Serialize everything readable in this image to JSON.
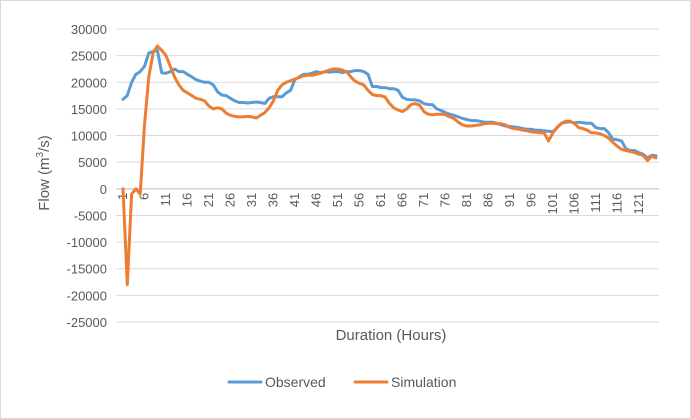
{
  "chart_data": {
    "type": "line",
    "title": "",
    "xlabel": "Duration (Hours)",
    "ylabel_main": "Flow (m",
    "ylabel_sup": "3",
    "ylabel_tail": "/s)",
    "ylim": [
      -25000,
      30000
    ],
    "yticks": [
      -25000,
      -20000,
      -15000,
      -10000,
      -5000,
      0,
      5000,
      10000,
      15000,
      20000,
      25000,
      30000
    ],
    "xlim": [
      1,
      125
    ],
    "xticks": [
      1,
      6,
      11,
      16,
      21,
      26,
      31,
      36,
      41,
      46,
      51,
      56,
      61,
      66,
      71,
      76,
      81,
      86,
      91,
      96,
      101,
      106,
      111,
      116,
      121
    ],
    "grid": true,
    "legend_position": "bottom",
    "series": [
      {
        "name": "Observed",
        "color": "#5b9bd5",
        "points": [
          [
            1,
            16800
          ],
          [
            2,
            17500
          ],
          [
            3,
            20000
          ],
          [
            4,
            21500
          ],
          [
            5,
            22000
          ],
          [
            6,
            23000
          ],
          [
            7,
            25500
          ],
          [
            8,
            25800
          ],
          [
            9,
            26000
          ],
          [
            10,
            21800
          ],
          [
            11,
            21700
          ],
          [
            12,
            22000
          ],
          [
            13,
            22500
          ],
          [
            14,
            22000
          ],
          [
            15,
            22000
          ],
          [
            16,
            21500
          ],
          [
            17,
            21000
          ],
          [
            18,
            20500
          ],
          [
            19,
            20200
          ],
          [
            20,
            20000
          ],
          [
            21,
            20000
          ],
          [
            22,
            19500
          ],
          [
            23,
            18200
          ],
          [
            24,
            17600
          ],
          [
            25,
            17500
          ],
          [
            26,
            17000
          ],
          [
            27,
            16500
          ],
          [
            28,
            16200
          ],
          [
            29,
            16200
          ],
          [
            30,
            16100
          ],
          [
            31,
            16200
          ],
          [
            32,
            16300
          ],
          [
            33,
            16200
          ],
          [
            34,
            16000
          ],
          [
            35,
            17000
          ],
          [
            36,
            17300
          ],
          [
            37,
            17300
          ],
          [
            38,
            17300
          ],
          [
            39,
            18000
          ],
          [
            40,
            18500
          ],
          [
            41,
            20500
          ],
          [
            42,
            21000
          ],
          [
            43,
            21500
          ],
          [
            44,
            21500
          ],
          [
            45,
            21700
          ],
          [
            46,
            22000
          ],
          [
            47,
            21800
          ],
          [
            48,
            22000
          ],
          [
            49,
            21900
          ],
          [
            50,
            22000
          ],
          [
            51,
            22000
          ],
          [
            52,
            21800
          ],
          [
            53,
            22000
          ],
          [
            54,
            22000
          ],
          [
            55,
            22200
          ],
          [
            56,
            22200
          ],
          [
            57,
            22000
          ],
          [
            58,
            21500
          ],
          [
            59,
            19200
          ],
          [
            60,
            19200
          ],
          [
            61,
            19000
          ],
          [
            62,
            19000
          ],
          [
            63,
            18800
          ],
          [
            64,
            18800
          ],
          [
            65,
            18500
          ],
          [
            66,
            17200
          ],
          [
            67,
            16800
          ],
          [
            68,
            16700
          ],
          [
            69,
            16700
          ],
          [
            70,
            16500
          ],
          [
            71,
            16000
          ],
          [
            72,
            15800
          ],
          [
            73,
            15800
          ],
          [
            74,
            15000
          ],
          [
            75,
            14700
          ],
          [
            76,
            14300
          ],
          [
            77,
            14000
          ],
          [
            78,
            13800
          ],
          [
            79,
            13500
          ],
          [
            80,
            13200
          ],
          [
            81,
            13000
          ],
          [
            82,
            12800
          ],
          [
            83,
            12800
          ],
          [
            84,
            12700
          ],
          [
            85,
            12500
          ],
          [
            86,
            12500
          ],
          [
            87,
            12500
          ],
          [
            88,
            12300
          ],
          [
            89,
            12000
          ],
          [
            90,
            11800
          ],
          [
            91,
            11700
          ],
          [
            92,
            11600
          ],
          [
            93,
            11500
          ],
          [
            94,
            11300
          ],
          [
            95,
            11200
          ],
          [
            96,
            11200
          ],
          [
            97,
            11000
          ],
          [
            98,
            11000
          ],
          [
            99,
            10900
          ],
          [
            100,
            10800
          ],
          [
            101,
            10700
          ],
          [
            102,
            11500
          ],
          [
            103,
            12300
          ],
          [
            104,
            12500
          ],
          [
            105,
            12600
          ],
          [
            106,
            12400
          ],
          [
            107,
            12500
          ],
          [
            108,
            12400
          ],
          [
            109,
            12300
          ],
          [
            110,
            12300
          ],
          [
            111,
            11500
          ],
          [
            112,
            11300
          ],
          [
            113,
            11300
          ],
          [
            114,
            10500
          ],
          [
            115,
            9300
          ],
          [
            116,
            9200
          ],
          [
            117,
            9000
          ],
          [
            118,
            7500
          ],
          [
            119,
            7200
          ],
          [
            120,
            7200
          ],
          [
            121,
            6800
          ],
          [
            122,
            6500
          ],
          [
            123,
            5800
          ],
          [
            124,
            6300
          ],
          [
            125,
            6200
          ]
        ]
      },
      {
        "name": "Simulation",
        "color": "#ed7d31",
        "points": [
          [
            1,
            0
          ],
          [
            2,
            -18000
          ],
          [
            3,
            -1000
          ],
          [
            4,
            0
          ],
          [
            5,
            -1000
          ],
          [
            6,
            12000
          ],
          [
            7,
            21000
          ],
          [
            8,
            25500
          ],
          [
            9,
            26800
          ],
          [
            10,
            26000
          ],
          [
            11,
            25000
          ],
          [
            12,
            23000
          ],
          [
            13,
            21000
          ],
          [
            14,
            19500
          ],
          [
            15,
            18500
          ],
          [
            16,
            18000
          ],
          [
            17,
            17500
          ],
          [
            18,
            17000
          ],
          [
            19,
            16800
          ],
          [
            20,
            16500
          ],
          [
            21,
            15500
          ],
          [
            22,
            15000
          ],
          [
            23,
            15200
          ],
          [
            24,
            15000
          ],
          [
            25,
            14200
          ],
          [
            26,
            13800
          ],
          [
            27,
            13600
          ],
          [
            28,
            13500
          ],
          [
            29,
            13500
          ],
          [
            30,
            13600
          ],
          [
            31,
            13500
          ],
          [
            32,
            13300
          ],
          [
            33,
            13800
          ],
          [
            34,
            14300
          ],
          [
            35,
            15200
          ],
          [
            36,
            16500
          ],
          [
            37,
            18500
          ],
          [
            38,
            19500
          ],
          [
            39,
            20000
          ],
          [
            40,
            20300
          ],
          [
            41,
            20600
          ],
          [
            42,
            20900
          ],
          [
            43,
            21200
          ],
          [
            44,
            21300
          ],
          [
            45,
            21300
          ],
          [
            46,
            21500
          ],
          [
            47,
            21700
          ],
          [
            48,
            22000
          ],
          [
            49,
            22300
          ],
          [
            50,
            22500
          ],
          [
            51,
            22500
          ],
          [
            52,
            22300
          ],
          [
            53,
            22000
          ],
          [
            54,
            21000
          ],
          [
            55,
            20200
          ],
          [
            56,
            19800
          ],
          [
            57,
            19500
          ],
          [
            58,
            18500
          ],
          [
            59,
            17700
          ],
          [
            60,
            17500
          ],
          [
            61,
            17500
          ],
          [
            62,
            17200
          ],
          [
            63,
            16000
          ],
          [
            64,
            15200
          ],
          [
            65,
            14800
          ],
          [
            66,
            14500
          ],
          [
            67,
            15000
          ],
          [
            68,
            15800
          ],
          [
            69,
            16000
          ],
          [
            70,
            15700
          ],
          [
            71,
            14500
          ],
          [
            72,
            14000
          ],
          [
            73,
            13900
          ],
          [
            74,
            14000
          ],
          [
            75,
            14000
          ],
          [
            76,
            13900
          ],
          [
            77,
            13500
          ],
          [
            78,
            13200
          ],
          [
            79,
            12500
          ],
          [
            80,
            12000
          ],
          [
            81,
            11800
          ],
          [
            82,
            11800
          ],
          [
            83,
            11900
          ],
          [
            84,
            12000
          ],
          [
            85,
            12200
          ],
          [
            86,
            12300
          ],
          [
            87,
            12300
          ],
          [
            88,
            12200
          ],
          [
            89,
            12200
          ],
          [
            90,
            12000
          ],
          [
            91,
            11500
          ],
          [
            92,
            11300
          ],
          [
            93,
            11200
          ],
          [
            94,
            11000
          ],
          [
            95,
            10900
          ],
          [
            96,
            10700
          ],
          [
            97,
            10600
          ],
          [
            98,
            10500
          ],
          [
            99,
            10500
          ],
          [
            100,
            9000
          ],
          [
            101,
            10500
          ],
          [
            102,
            11500
          ],
          [
            103,
            12300
          ],
          [
            104,
            12700
          ],
          [
            105,
            12700
          ],
          [
            106,
            12300
          ],
          [
            107,
            11500
          ],
          [
            108,
            11300
          ],
          [
            109,
            11000
          ],
          [
            110,
            10500
          ],
          [
            111,
            10500
          ],
          [
            112,
            10300
          ],
          [
            113,
            10000
          ],
          [
            114,
            9500
          ],
          [
            115,
            8700
          ],
          [
            116,
            8000
          ],
          [
            117,
            7400
          ],
          [
            118,
            7200
          ],
          [
            119,
            7000
          ],
          [
            120,
            6800
          ],
          [
            121,
            6500
          ],
          [
            122,
            6300
          ],
          [
            123,
            5300
          ],
          [
            124,
            6100
          ],
          [
            125,
            5800
          ]
        ]
      }
    ]
  }
}
